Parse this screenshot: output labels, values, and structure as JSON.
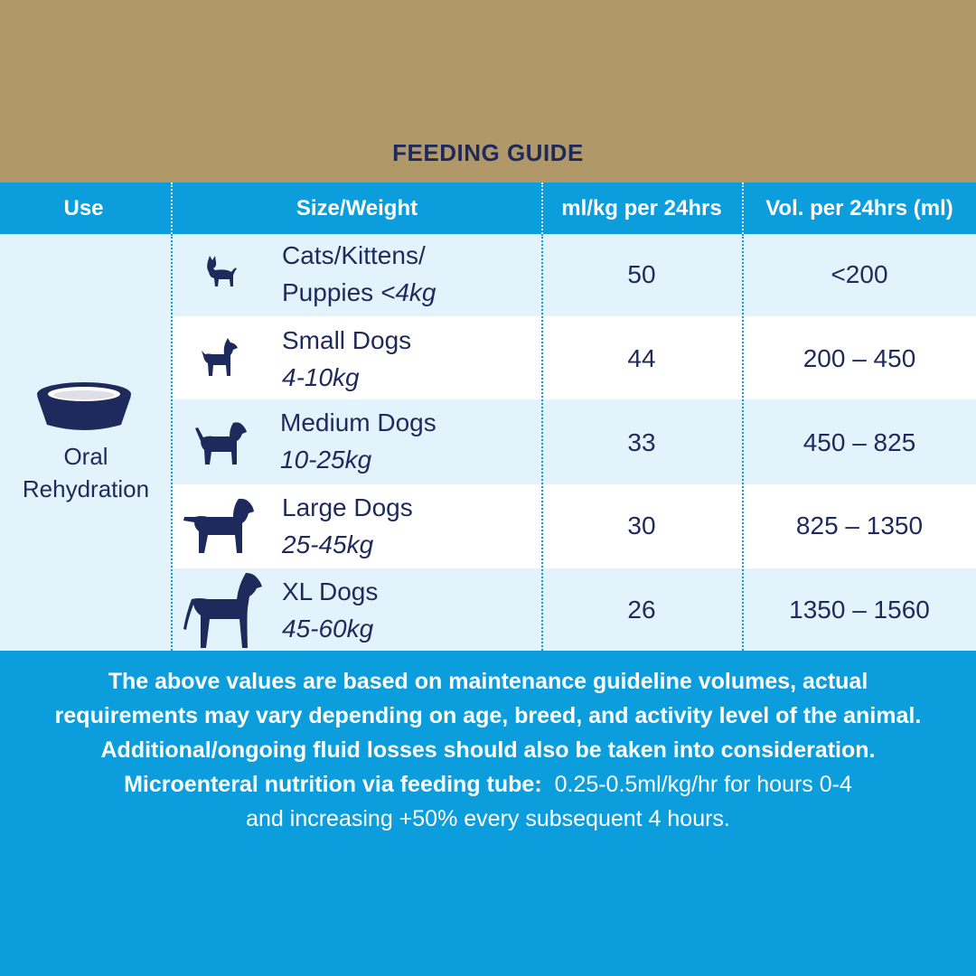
{
  "title": "FEEDING GUIDE",
  "colors": {
    "banner": "#b09869",
    "accent_blue": "#0c9ddc",
    "light_blue": "#e2f3fb",
    "navy": "#1f2a5c"
  },
  "headers": {
    "use": "Use",
    "size_weight": "Size/Weight",
    "ml_per_kg": "ml/kg per 24hrs",
    "volume": "Vol. per 24hrs (ml)"
  },
  "use": {
    "icon": "bowl-icon",
    "label_line1": "Oral",
    "label_line2": "Rehydration"
  },
  "rows": [
    {
      "icon": "cat-icon",
      "size_line1": "Cats/Kittens/",
      "size_line2_prefix": "Puppies ",
      "size_line2": "<4kg",
      "ml_per_kg": "50",
      "volume": "<200"
    },
    {
      "icon": "small-dog-icon",
      "size_line1": "Small Dogs",
      "size_line2": "4-10kg",
      "ml_per_kg": "44",
      "volume": "200 – 450"
    },
    {
      "icon": "medium-dog-icon",
      "size_line1": "Medium Dogs",
      "size_line2": "10-25kg",
      "ml_per_kg": "33",
      "volume": "450 – 825"
    },
    {
      "icon": "large-dog-icon",
      "size_line1": "Large Dogs",
      "size_line2": "25-45kg",
      "ml_per_kg": "30",
      "volume": "825 – 1350"
    },
    {
      "icon": "xl-dog-icon",
      "size_line1": "XL Dogs",
      "size_line2": "45-60kg",
      "ml_per_kg": "26",
      "volume": "1350 – 1560"
    }
  ],
  "footer": {
    "line1": "The above values are based on maintenance guideline volumes, actual",
    "line2": "requirements may vary depending on age, breed, and activity level of the animal.",
    "line3": "Additional/ongoing fluid losses should also be taken into consideration.",
    "line4_bold": "Microenteral nutrition via feeding tube:",
    "line4_rest": "0.25-0.5ml/kg/hr for hours 0-4",
    "line5": "and increasing +50% every subsequent 4 hours."
  }
}
